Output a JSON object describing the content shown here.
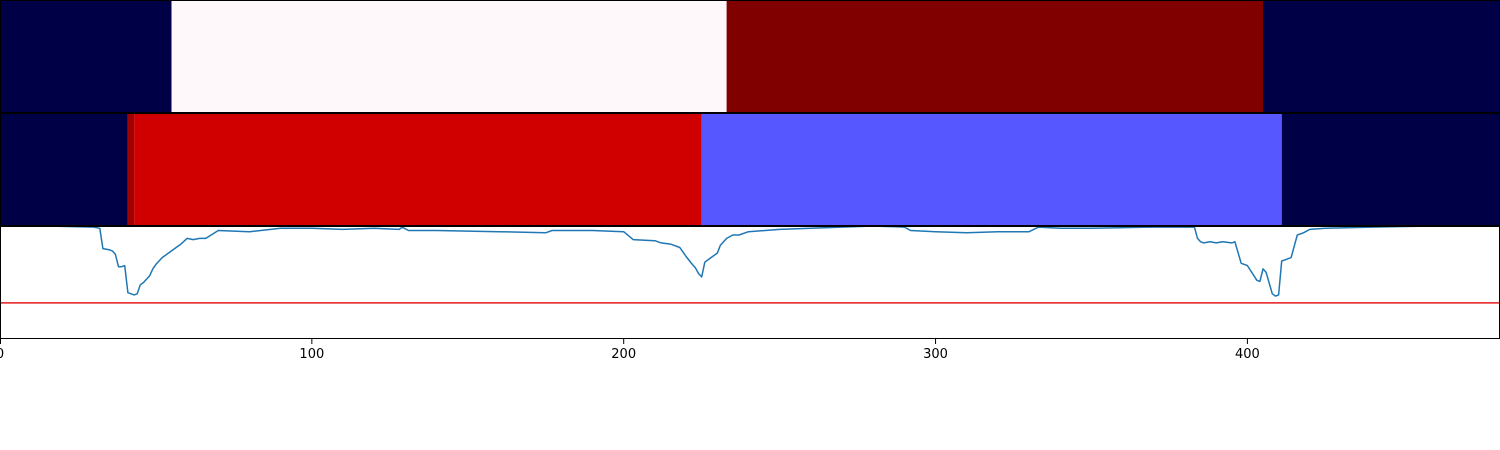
{
  "chart_data": {
    "type": "heatmap",
    "xlim": [
      0,
      481
    ],
    "x_ticks": [
      0,
      100,
      200,
      300,
      400
    ],
    "x_tick_labels": [
      "0",
      "100",
      "200",
      "300",
      "400"
    ],
    "grid": false,
    "tracks": [
      {
        "segments": [
          {
            "start": 0,
            "end": 55,
            "color": "#000046"
          },
          {
            "start": 55,
            "end": 233,
            "color": "#fff8fb"
          },
          {
            "start": 233,
            "end": 405,
            "color": "#800000"
          },
          {
            "start": 405,
            "end": 481,
            "color": "#000046"
          }
        ]
      },
      {
        "segments": [
          {
            "start": 0,
            "end": 41,
            "color": "#000046"
          },
          {
            "start": 41,
            "end": 43,
            "color": "#a00000"
          },
          {
            "start": 43,
            "end": 225,
            "color": "#d00000"
          },
          {
            "start": 225,
            "end": 411,
            "color": "#5757ff"
          },
          {
            "start": 411,
            "end": 481,
            "color": "#000046"
          }
        ]
      }
    ],
    "line_panel": {
      "ylim": [
        0,
        1
      ],
      "threshold": 0.32,
      "threshold_color": "#e31a1c",
      "series_color": "#1f77b4",
      "x": [
        0,
        15,
        30,
        32,
        33,
        35,
        36,
        37,
        38,
        39,
        40,
        41,
        42,
        43,
        44,
        45,
        46,
        47,
        48,
        49,
        50,
        52,
        54,
        56,
        58,
        60,
        62,
        64,
        66,
        70,
        80,
        90,
        100,
        110,
        120,
        128,
        129,
        131,
        140,
        160,
        175,
        177,
        190,
        200,
        203,
        210,
        212,
        215,
        218,
        220,
        222,
        223,
        224,
        225,
        226,
        228,
        230,
        231,
        233,
        235,
        237,
        240,
        250,
        260,
        280,
        290,
        292,
        300,
        310,
        320,
        330,
        333,
        340,
        350,
        370,
        383,
        384,
        385,
        386,
        388,
        390,
        392,
        395,
        396,
        398,
        399,
        400,
        403,
        404,
        405,
        406,
        408,
        409,
        410,
        411,
        412,
        414,
        416,
        418,
        420,
        425,
        440,
        460
      ],
      "y": [
        1.0,
        1.0,
        0.99,
        0.98,
        0.8,
        0.79,
        0.78,
        0.75,
        0.64,
        0.64,
        0.65,
        0.41,
        0.4,
        0.39,
        0.4,
        0.48,
        0.5,
        0.53,
        0.56,
        0.62,
        0.66,
        0.72,
        0.76,
        0.8,
        0.84,
        0.89,
        0.88,
        0.89,
        0.89,
        0.96,
        0.95,
        0.98,
        0.98,
        0.97,
        0.98,
        0.97,
        0.99,
        0.96,
        0.96,
        0.95,
        0.94,
        0.96,
        0.96,
        0.95,
        0.88,
        0.87,
        0.85,
        0.84,
        0.81,
        0.73,
        0.66,
        0.63,
        0.58,
        0.55,
        0.68,
        0.72,
        0.76,
        0.83,
        0.89,
        0.92,
        0.92,
        0.95,
        0.97,
        0.98,
        1.0,
        0.99,
        0.96,
        0.95,
        0.94,
        0.95,
        0.95,
        0.99,
        0.98,
        0.98,
        0.99,
        0.99,
        0.89,
        0.86,
        0.85,
        0.86,
        0.85,
        0.86,
        0.85,
        0.86,
        0.67,
        0.66,
        0.65,
        0.52,
        0.51,
        0.62,
        0.59,
        0.4,
        0.38,
        0.39,
        0.69,
        0.7,
        0.72,
        0.92,
        0.94,
        0.97,
        0.98,
        0.99,
        1.0
      ]
    }
  }
}
